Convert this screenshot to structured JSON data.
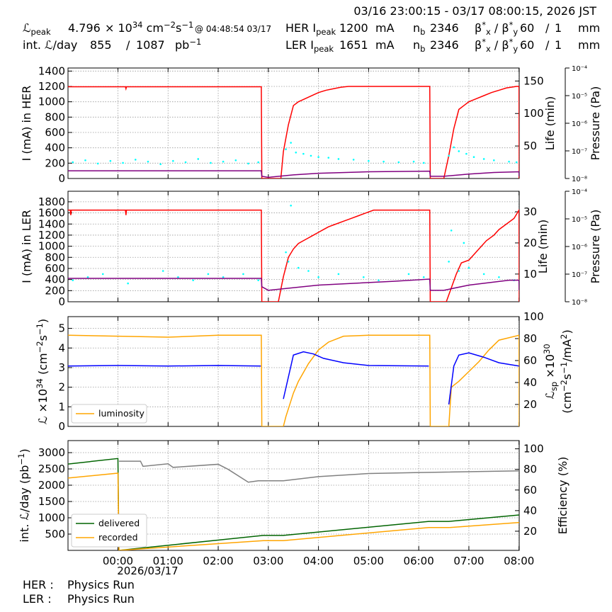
{
  "header": {
    "date_range": "03/16 23:00:15 - 03/17 08:00:15, 2026 JST",
    "lum_peak_label": [
      "ℒ",
      {
        "sub": "peak"
      }
    ],
    "lum_peak_value": 4.796,
    "lum_peak_unit": [
      "× 10",
      {
        "sup": "34"
      },
      " cm",
      {
        "sup": "−2"
      },
      "s",
      {
        "sup": "−1"
      }
    ],
    "lum_peak_time": "@ 04:48:54 03/17",
    "int_lum_label": "int. ℒ/day",
    "int_lum_recorded": 855,
    "int_lum_separator": "/",
    "int_lum_delivered": 1087,
    "int_lum_unit": [
      "pb",
      {
        "sup": "−1"
      }
    ],
    "her": {
      "current_label": [
        "HER I",
        {
          "sub": "peak"
        }
      ],
      "current_value": 1200,
      "current_unit": "mA",
      "bunches_label": [
        "n",
        {
          "sub": "b"
        }
      ],
      "bunches_value": 2346,
      "beta_label": [
        "β",
        {
          "sup": "*"
        },
        {
          "sub": "x"
        },
        " / β",
        {
          "sup": "*"
        },
        {
          "sub": "y"
        }
      ],
      "beta_x": 60,
      "beta_sep": "/",
      "beta_y": 1,
      "beta_unit": "mm"
    },
    "ler": {
      "current_label": [
        "LER I",
        {
          "sub": "peak"
        }
      ],
      "current_value": 1651,
      "current_unit": "mA",
      "bunches_label": [
        "n",
        {
          "sub": "b"
        }
      ],
      "bunches_value": 2346,
      "beta_label": [
        "β",
        {
          "sup": "*"
        },
        {
          "sub": "x"
        },
        " / β",
        {
          "sup": "*"
        },
        {
          "sub": "y"
        }
      ],
      "beta_x": 60,
      "beta_sep": "/",
      "beta_y": 1,
      "beta_unit": "mm"
    }
  },
  "chart_data": [
    {
      "type": "line",
      "xlim": [
        -0.996,
        8.004
      ],
      "xticks": [
        0,
        1,
        2,
        3,
        4,
        5,
        6,
        7,
        8
      ],
      "show_xticklabels": false,
      "grid": true,
      "ylabel": "I (mA) in HER",
      "ylim": [
        0,
        1440
      ],
      "yticks": [
        0,
        200,
        400,
        600,
        800,
        1000,
        1200,
        1400
      ],
      "y2label": "Life (min)",
      "y2lim": [
        0,
        170
      ],
      "y2ticks": [
        50,
        100,
        150
      ],
      "y3label": "Pressure (Pa)",
      "y3lim": [
        1e-08,
        0.0001
      ],
      "y3scale": "log",
      "y3ticks": [
        {
          "value": 1e-08,
          "label": "10⁻⁸"
        },
        {
          "value": 1e-07,
          "label": "10⁻⁷"
        },
        {
          "value": 1e-06,
          "label": "10⁻⁶"
        },
        {
          "value": 1e-05,
          "label": "10⁻⁵"
        },
        {
          "value": 0.0001,
          "label": "10⁻⁴"
        }
      ],
      "series": [
        {
          "color": "#ff0000",
          "axis": "y",
          "x": [
            -0.996,
            0.15,
            0.16,
            0.17,
            2.86,
            2.87,
            3.25,
            3.3,
            3.4,
            3.5,
            3.6,
            3.7,
            3.8,
            3.9,
            4.0,
            4.15,
            4.3,
            4.45,
            4.6,
            6.22,
            6.23,
            6.5,
            6.6,
            6.7,
            6.8,
            6.9,
            7.0,
            7.15,
            7.3,
            7.45,
            7.6,
            7.75,
            7.95,
            8.0,
            8.004
          ],
          "values": [
            1195,
            1195,
            1170,
            1195,
            1195,
            0,
            0,
            350,
            700,
            950,
            1000,
            1030,
            1060,
            1090,
            1120,
            1150,
            1170,
            1190,
            1200,
            1200,
            0,
            0,
            300,
            650,
            900,
            950,
            1000,
            1040,
            1080,
            1120,
            1150,
            1180,
            1200,
            1200,
            0
          ]
        },
        {
          "color": "#00ffff",
          "axis": "y2",
          "kind": "scatter",
          "x": [
            -0.9,
            -0.65,
            -0.4,
            -0.15,
            0.1,
            0.35,
            0.6,
            0.85,
            1.1,
            1.35,
            1.6,
            1.85,
            2.1,
            2.35,
            2.6,
            2.8,
            3.35,
            3.45,
            3.55,
            3.7,
            3.85,
            4.0,
            4.2,
            4.4,
            4.7,
            5.0,
            5.3,
            5.6,
            5.9,
            6.1,
            6.6,
            6.7,
            6.8,
            6.95,
            7.1,
            7.3,
            7.5,
            7.8,
            7.95
          ],
          "values": [
            25,
            28,
            23,
            27,
            24,
            29,
            26,
            22,
            27,
            25,
            30,
            24,
            26,
            28,
            23,
            25,
            45,
            55,
            40,
            38,
            35,
            33,
            32,
            30,
            29,
            27,
            26,
            25,
            26,
            24,
            35,
            48,
            42,
            38,
            33,
            30,
            28,
            26,
            25
          ]
        },
        {
          "color": "#800080",
          "axis": "y3",
          "x": [
            -0.996,
            2.86,
            2.87,
            3.0,
            3.5,
            4.0,
            5.0,
            6.22,
            6.23,
            6.5,
            7.0,
            7.5,
            8.0,
            8.004
          ],
          "values": [
            1.9e-08,
            1.9e-08,
            1.2e-08,
            1.1e-08,
            1.35e-08,
            1.55e-08,
            1.75e-08,
            1.85e-08,
            1.2e-08,
            1.2e-08,
            1.45e-08,
            1.65e-08,
            1.75e-08,
            1.2e-08
          ]
        }
      ]
    },
    {
      "type": "line",
      "xlim": [
        -0.996,
        8.004
      ],
      "xticks": [
        0,
        1,
        2,
        3,
        4,
        5,
        6,
        7,
        8
      ],
      "show_xticklabels": false,
      "grid": true,
      "ylabel": "I (mA) in LER",
      "ylim": [
        0,
        1990
      ],
      "yticks": [
        0,
        200,
        400,
        600,
        800,
        1000,
        1200,
        1400,
        1600,
        1800
      ],
      "y2label": "Life (min)",
      "y2lim": [
        1.1,
        36.6
      ],
      "y2ticks": [
        10,
        20,
        30
      ],
      "y3label": "Pressure (Pa)",
      "y3lim": [
        1e-08,
        0.0001
      ],
      "y3scale": "log",
      "y3ticks": [
        {
          "value": 1e-08,
          "label": "10⁻⁸"
        },
        {
          "value": 1e-07,
          "label": "10⁻⁷"
        },
        {
          "value": 1e-06,
          "label": "10⁻⁶"
        },
        {
          "value": 1e-05,
          "label": "10⁻⁵"
        },
        {
          "value": 0.0001,
          "label": "10⁻⁴"
        }
      ],
      "series": [
        {
          "color": "#ff0000",
          "axis": "y",
          "x": [
            -0.996,
            -0.95,
            -0.94,
            -0.93,
            0.15,
            0.16,
            0.17,
            2.86,
            2.87,
            3.2,
            3.3,
            3.4,
            3.5,
            3.6,
            3.7,
            3.8,
            3.9,
            4.0,
            4.1,
            4.2,
            4.35,
            4.5,
            4.65,
            4.8,
            4.95,
            5.1,
            6.22,
            6.23,
            6.55,
            6.65,
            6.75,
            6.85,
            7.0,
            7.1,
            7.2,
            7.35,
            7.5,
            7.6,
            7.75,
            7.9,
            8.0,
            8.004
          ],
          "values": [
            1650,
            1650,
            1560,
            1650,
            1650,
            1560,
            1650,
            1650,
            0,
            0,
            450,
            800,
            950,
            1050,
            1100,
            1150,
            1200,
            1250,
            1300,
            1350,
            1400,
            1450,
            1500,
            1550,
            1600,
            1650,
            1650,
            0,
            0,
            250,
            500,
            700,
            750,
            850,
            950,
            1100,
            1200,
            1300,
            1400,
            1500,
            1650,
            0
          ]
        },
        {
          "color": "#00ffff",
          "axis": "y2",
          "kind": "scatter",
          "x": [
            -0.9,
            -0.6,
            -0.3,
            0.2,
            0.9,
            1.2,
            1.5,
            1.8,
            2.1,
            2.5,
            2.8,
            3.35,
            3.4,
            3.45,
            3.6,
            3.8,
            4.0,
            4.4,
            4.9,
            5.2,
            5.8,
            6.1,
            6.6,
            6.65,
            6.8,
            6.9,
            7.0,
            7.3,
            7.6,
            7.9
          ],
          "values": [
            8,
            9,
            10,
            7,
            11,
            9,
            8,
            10,
            9,
            10,
            8,
            17,
            14,
            32,
            12,
            11,
            9,
            10,
            9,
            8,
            10,
            9,
            14,
            24,
            11,
            20,
            12,
            10,
            9,
            8
          ]
        },
        {
          "color": "#800080",
          "axis": "y3",
          "x": [
            -0.996,
            2.86,
            2.87,
            3.0,
            4.0,
            5.5,
            6.22,
            6.23,
            6.5,
            7.0,
            7.8,
            8.0,
            8.004
          ],
          "values": [
            7e-08,
            7e-08,
            3.5e-08,
            2.6e-08,
            4e-08,
            5.5e-08,
            6.6e-08,
            2.6e-08,
            2.6e-08,
            4e-08,
            6e-08,
            6e-08,
            2.6e-08
          ]
        }
      ]
    },
    {
      "type": "line",
      "xlim": [
        -0.996,
        8.004
      ],
      "xticks": [
        0,
        1,
        2,
        3,
        4,
        5,
        6,
        7,
        8
      ],
      "show_xticklabels": false,
      "grid": true,
      "ylabel": [
        "ℒ ×10",
        {
          "sup": "34"
        },
        " (cm",
        {
          "sup": "−2"
        },
        "s",
        {
          "sup": "−1"
        },
        ")"
      ],
      "ylim": [
        0,
        5.6
      ],
      "yticks": [
        0,
        1,
        2,
        3,
        4,
        5
      ],
      "y2label": [
        "ℒ",
        {
          "sub": "sp"
        },
        " ×10",
        {
          "sup": "30"
        }
      ],
      "y2label2": [
        "(cm",
        {
          "sup": "−2"
        },
        "s",
        {
          "sup": "−1"
        },
        "/mA",
        {
          "sup": "2"
        },
        ")"
      ],
      "y2lim": [
        0,
        100
      ],
      "y2ticks": [
        20,
        40,
        60,
        80,
        100
      ],
      "legend": "lower left",
      "series": [
        {
          "name": "luminosity",
          "color": "#ffa500",
          "axis": "y",
          "x": [
            -0.996,
            0,
            1,
            2,
            2.86,
            2.87,
            3.3,
            3.35,
            3.5,
            3.6,
            3.8,
            4.0,
            4.2,
            4.5,
            5.0,
            6.22,
            6.23,
            6.6,
            6.65,
            6.8,
            7.0,
            7.2,
            7.4,
            7.6,
            8.0,
            8.004
          ],
          "values": [
            4.65,
            4.6,
            4.55,
            4.65,
            4.65,
            0,
            0,
            0.5,
            1.7,
            2.3,
            3.2,
            3.9,
            4.3,
            4.6,
            4.65,
            4.65,
            0,
            0,
            2.0,
            2.3,
            2.8,
            3.3,
            3.9,
            4.4,
            4.65,
            0
          ]
        },
        {
          "color": "#0000ff",
          "axis": "y2",
          "x": [
            -0.996,
            0,
            1,
            2,
            2.85,
            3.0,
            3.3,
            3.4,
            3.5,
            3.7,
            3.9,
            4.1,
            4.5,
            5.0,
            6.2,
            6.4,
            6.6,
            6.7,
            6.8,
            7.0,
            7.3,
            7.6,
            8.0
          ],
          "values": [
            55,
            55.5,
            55,
            55.5,
            55,
            null,
            25,
            45,
            65,
            68,
            66,
            62,
            58,
            55.5,
            55,
            null,
            20,
            55,
            65,
            67,
            63,
            58,
            55
          ]
        }
      ]
    },
    {
      "type": "line",
      "xlim": [
        -0.996,
        8.004
      ],
      "grid": true,
      "xticks": [
        {
          "value": 0,
          "label": "00:00"
        },
        {
          "value": 1,
          "label": "01:00"
        },
        {
          "value": 2,
          "label": "02:00"
        },
        {
          "value": 3,
          "label": "03:00"
        },
        {
          "value": 4,
          "label": "04:00"
        },
        {
          "value": 5,
          "label": "05:00"
        },
        {
          "value": 6,
          "label": "06:00"
        },
        {
          "value": 7,
          "label": "07:00"
        },
        {
          "value": 8,
          "label": "08:00"
        }
      ],
      "x_date_label": "2026/03/17",
      "ylabel": [
        "int. ℒ/day (pb",
        {
          "sup": "−1"
        },
        ")"
      ],
      "ylim": [
        0,
        3370
      ],
      "yticks": [
        500,
        1000,
        1500,
        2000,
        2500,
        3000
      ],
      "y2label": "Efficiency (%)",
      "y2lim": [
        1.4,
        108
      ],
      "y2ticks": [
        20,
        40,
        60,
        80,
        100
      ],
      "legend": "lower left",
      "series": [
        {
          "name": "delivered",
          "color": "#006400",
          "axis": "y",
          "x": [
            -0.996,
            0,
            0.02,
            2.9,
            3.3,
            6.2,
            6.6,
            8.004
          ],
          "values": [
            2650,
            2820,
            0,
            460,
            460,
            890,
            890,
            1087
          ]
        },
        {
          "name": "recorded",
          "color": "#ffa500",
          "axis": "y",
          "x": [
            -0.996,
            0,
            0.02,
            2.9,
            3.3,
            6.2,
            6.6,
            8.004
          ],
          "values": [
            2220,
            2370,
            0,
            300,
            300,
            700,
            700,
            855
          ]
        },
        {
          "color": "#808080",
          "axis": "y2",
          "x": [
            0.02,
            0.45,
            0.5,
            1.0,
            1.1,
            2.0,
            2.2,
            2.6,
            2.8,
            3.3,
            4.0,
            5.0,
            6.0,
            8.004
          ],
          "values": [
            88,
            88,
            83,
            85.5,
            82,
            85,
            80,
            67.6,
            69,
            69,
            73,
            76,
            77,
            78.6
          ]
        }
      ]
    }
  ],
  "footer": {
    "her_label": "HER :",
    "her_status": "Physics Run",
    "ler_label": "LER :",
    "ler_status": "Physics Run"
  }
}
